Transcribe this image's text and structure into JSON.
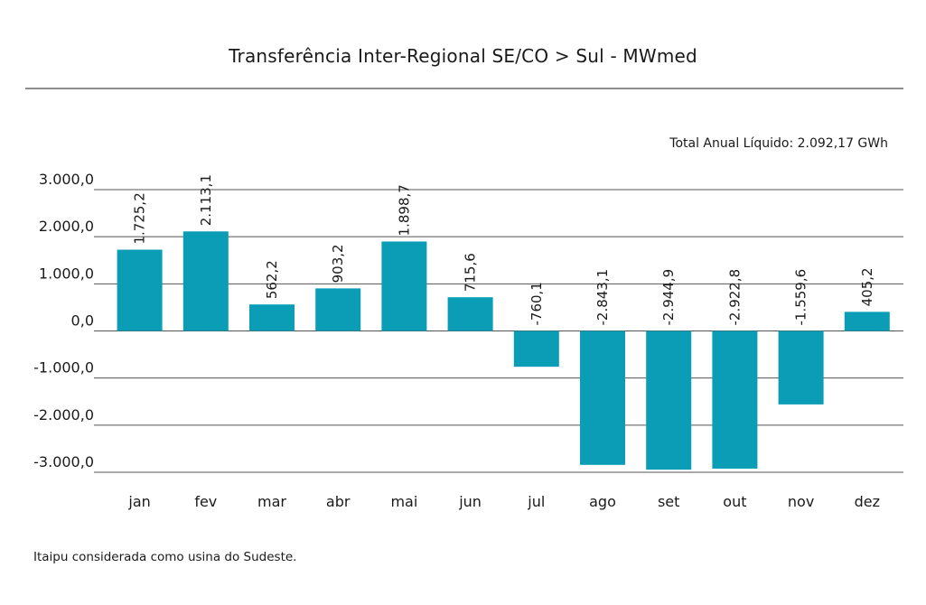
{
  "title": "Transferência Inter-Regional SE/CO > Sul - MWmed",
  "total_note": "Total Anual Líquido: 2.092,17 GWh",
  "footnote": "Itaipu considerada como usina do Sudeste.",
  "colors": {
    "bar": "#0b9db5",
    "grid": "#555555",
    "title_rule": "#8c8c8c"
  },
  "chart_data": {
    "type": "bar",
    "title": "Transferência Inter-Regional SE/CO > Sul - MWmed",
    "categories": [
      "jan",
      "fev",
      "mar",
      "abr",
      "mai",
      "jun",
      "jul",
      "ago",
      "set",
      "out",
      "nov",
      "dez"
    ],
    "values": [
      1725.2,
      2113.1,
      562.2,
      903.2,
      1898.7,
      715.6,
      -760.1,
      -2843.1,
      -2944.9,
      -2922.8,
      -1559.6,
      405.2
    ],
    "data_labels": [
      "1.725,2",
      "2.113,1",
      "562,2",
      "903,2",
      "1.898,7",
      "715,6",
      "-760,1",
      "-2.843,1",
      "-2.944,9",
      "-2.922,8",
      "-1.559,6",
      "405,2"
    ],
    "yticks": [
      3000,
      2000,
      1000,
      0,
      -1000,
      -2000,
      -3000
    ],
    "ytick_labels": [
      "3.000,0",
      "2.000,0",
      "1.000,0",
      "0,0",
      "-1.000,0",
      "-2.000,0",
      "-3.000,0"
    ],
    "ylim": [
      -3000,
      3000
    ],
    "grid": true,
    "legend": "none",
    "xlabel": "",
    "ylabel": ""
  }
}
